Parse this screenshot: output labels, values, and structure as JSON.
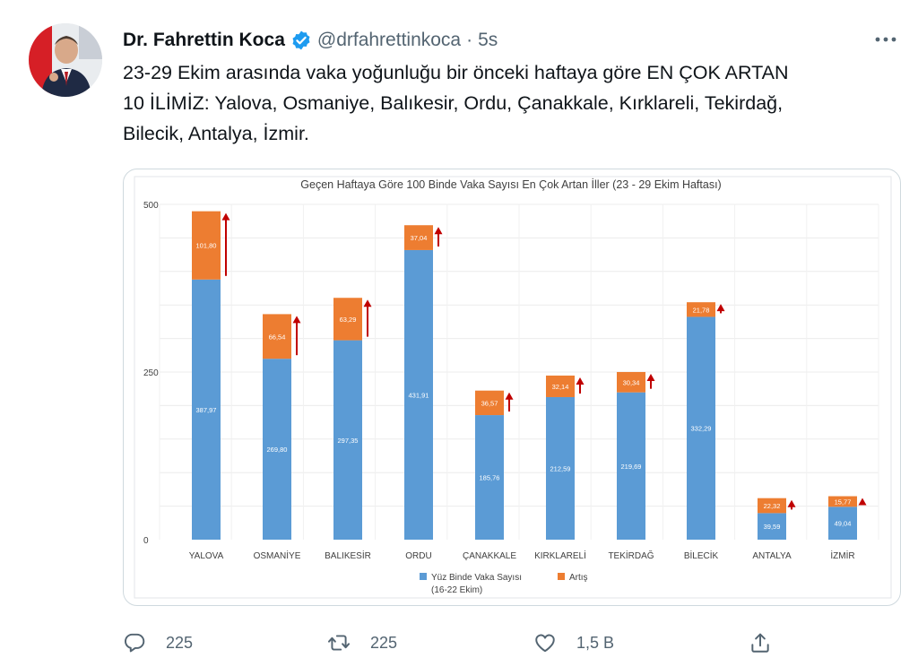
{
  "tweet": {
    "author_name": "Dr. Fahrettin Koca",
    "handle": "@drfahrettinkoca",
    "separator": "·",
    "time": "5s",
    "text_lines": [
      "23-29 Ekim arasında vaka yoğunluğu bir önceki haftaya göre EN ÇOK ARTAN",
      "10 İLİMİZ: Yalova, Osmaniye, Balıkesir, Ordu, Çanakkale, Kırklareli, Tekirdağ,",
      "Bilecik, Antalya, İzmir."
    ],
    "actions": {
      "reply_count": "225",
      "retweet_count": "225",
      "like_count": "1,5 B"
    },
    "icons": {
      "verified": "verified-badge-icon",
      "more": "more-icon",
      "reply": "reply-icon",
      "retweet": "retweet-icon",
      "like": "heart-icon",
      "share": "share-icon"
    }
  },
  "colors": {
    "base_series": "#5b9bd5",
    "increase_series": "#ed7d31",
    "arrow": "#c00000",
    "verified": "#1d9bf0"
  },
  "chart_data": {
    "type": "bar",
    "stacked": true,
    "title": "Geçen Haftaya Göre 100 Binde Vaka Sayısı En Çok Artan İller (23 - 29 Ekim Haftası)",
    "categories": [
      "YALOVA",
      "OSMANİYE",
      "BALIKESİR",
      "ORDU",
      "ÇANAKKALE",
      "KIRKLARELİ",
      "TEKİRDAĞ",
      "BİLECİK",
      "ANTALYA",
      "İZMİR"
    ],
    "series": [
      {
        "name": "Yüz Binde Vaka Sayısı (16-22 Ekim)",
        "values": [
          387.97,
          269.8,
          297.35,
          431.91,
          185.76,
          212.59,
          219.69,
          332.29,
          39.59,
          49.04
        ],
        "labels": [
          "387,97",
          "269,80",
          "297,35",
          "431,91",
          "185,76",
          "212,59",
          "219,69",
          "332,29",
          "39,59",
          "49,04"
        ]
      },
      {
        "name": "Artış",
        "values": [
          101.8,
          66.54,
          63.29,
          37.04,
          36.57,
          32.14,
          30.34,
          21.78,
          22.32,
          15.77
        ],
        "labels": [
          "101,80",
          "66,54",
          "63,29",
          "37,04",
          "36,57",
          "32,14",
          "30,34",
          "21,78",
          "22,32",
          "15,77"
        ]
      }
    ],
    "legend": {
      "base_line1": "Yüz Binde Vaka Sayısı",
      "base_line2": "(16-22 Ekim)",
      "increase": "Artış",
      "position": "bottom"
    },
    "ylim": [
      0,
      500
    ],
    "yticks": [
      0,
      250,
      500
    ],
    "grid": true
  }
}
